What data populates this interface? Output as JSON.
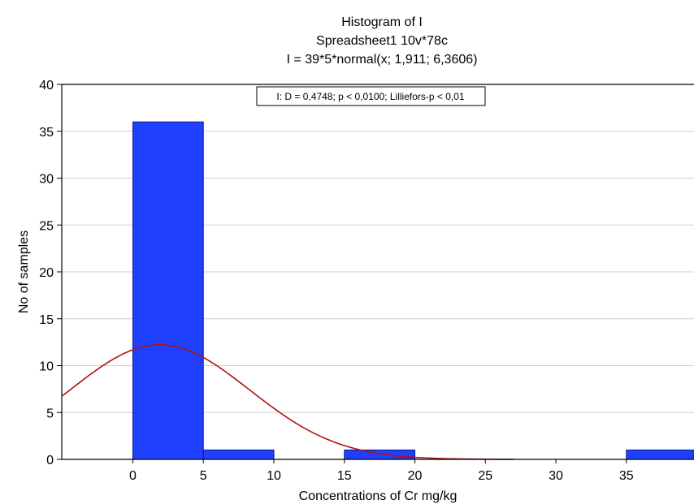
{
  "chart_data": {
    "type": "bar",
    "title_lines": [
      "Histogram of I",
      "Spreadsheet1 10v*78c",
      "I = 39*5*normal(x; 1,911; 6,3606)"
    ],
    "stat_box": "I:   D = 0,4748; p < 0,0100; Lilliefors-p < 0,01",
    "xlabel": "Concentrations of Cr mg/kg",
    "ylabel": "No of samples",
    "xlim": [
      -9,
      40
    ],
    "ylim": [
      0,
      40
    ],
    "x_ticks": [
      0,
      5,
      10,
      15,
      20,
      25,
      30,
      35
    ],
    "y_ticks": [
      0,
      5,
      10,
      15,
      20,
      25,
      30,
      35,
      40
    ],
    "bins": [
      {
        "from": 0,
        "to": 5,
        "count": 36
      },
      {
        "from": 5,
        "to": 10,
        "count": 1
      },
      {
        "from": 10,
        "to": 15,
        "count": 0
      },
      {
        "from": 15,
        "to": 20,
        "count": 1
      },
      {
        "from": 20,
        "to": 25,
        "count": 0
      },
      {
        "from": 25,
        "to": 30,
        "count": 0
      },
      {
        "from": 30,
        "to": 35,
        "count": 0
      },
      {
        "from": 35,
        "to": 40,
        "count": 1
      }
    ],
    "normal_fit": {
      "n": 39,
      "bin_width": 5,
      "mean": 1.911,
      "sd": 6.3606
    },
    "grid": true,
    "colors": {
      "bar_fill": "#1f3fff",
      "bar_stroke": "#0a1a8a",
      "curve": "#b01010",
      "grid": "#d0d0d0",
      "axis": "#000000"
    }
  }
}
